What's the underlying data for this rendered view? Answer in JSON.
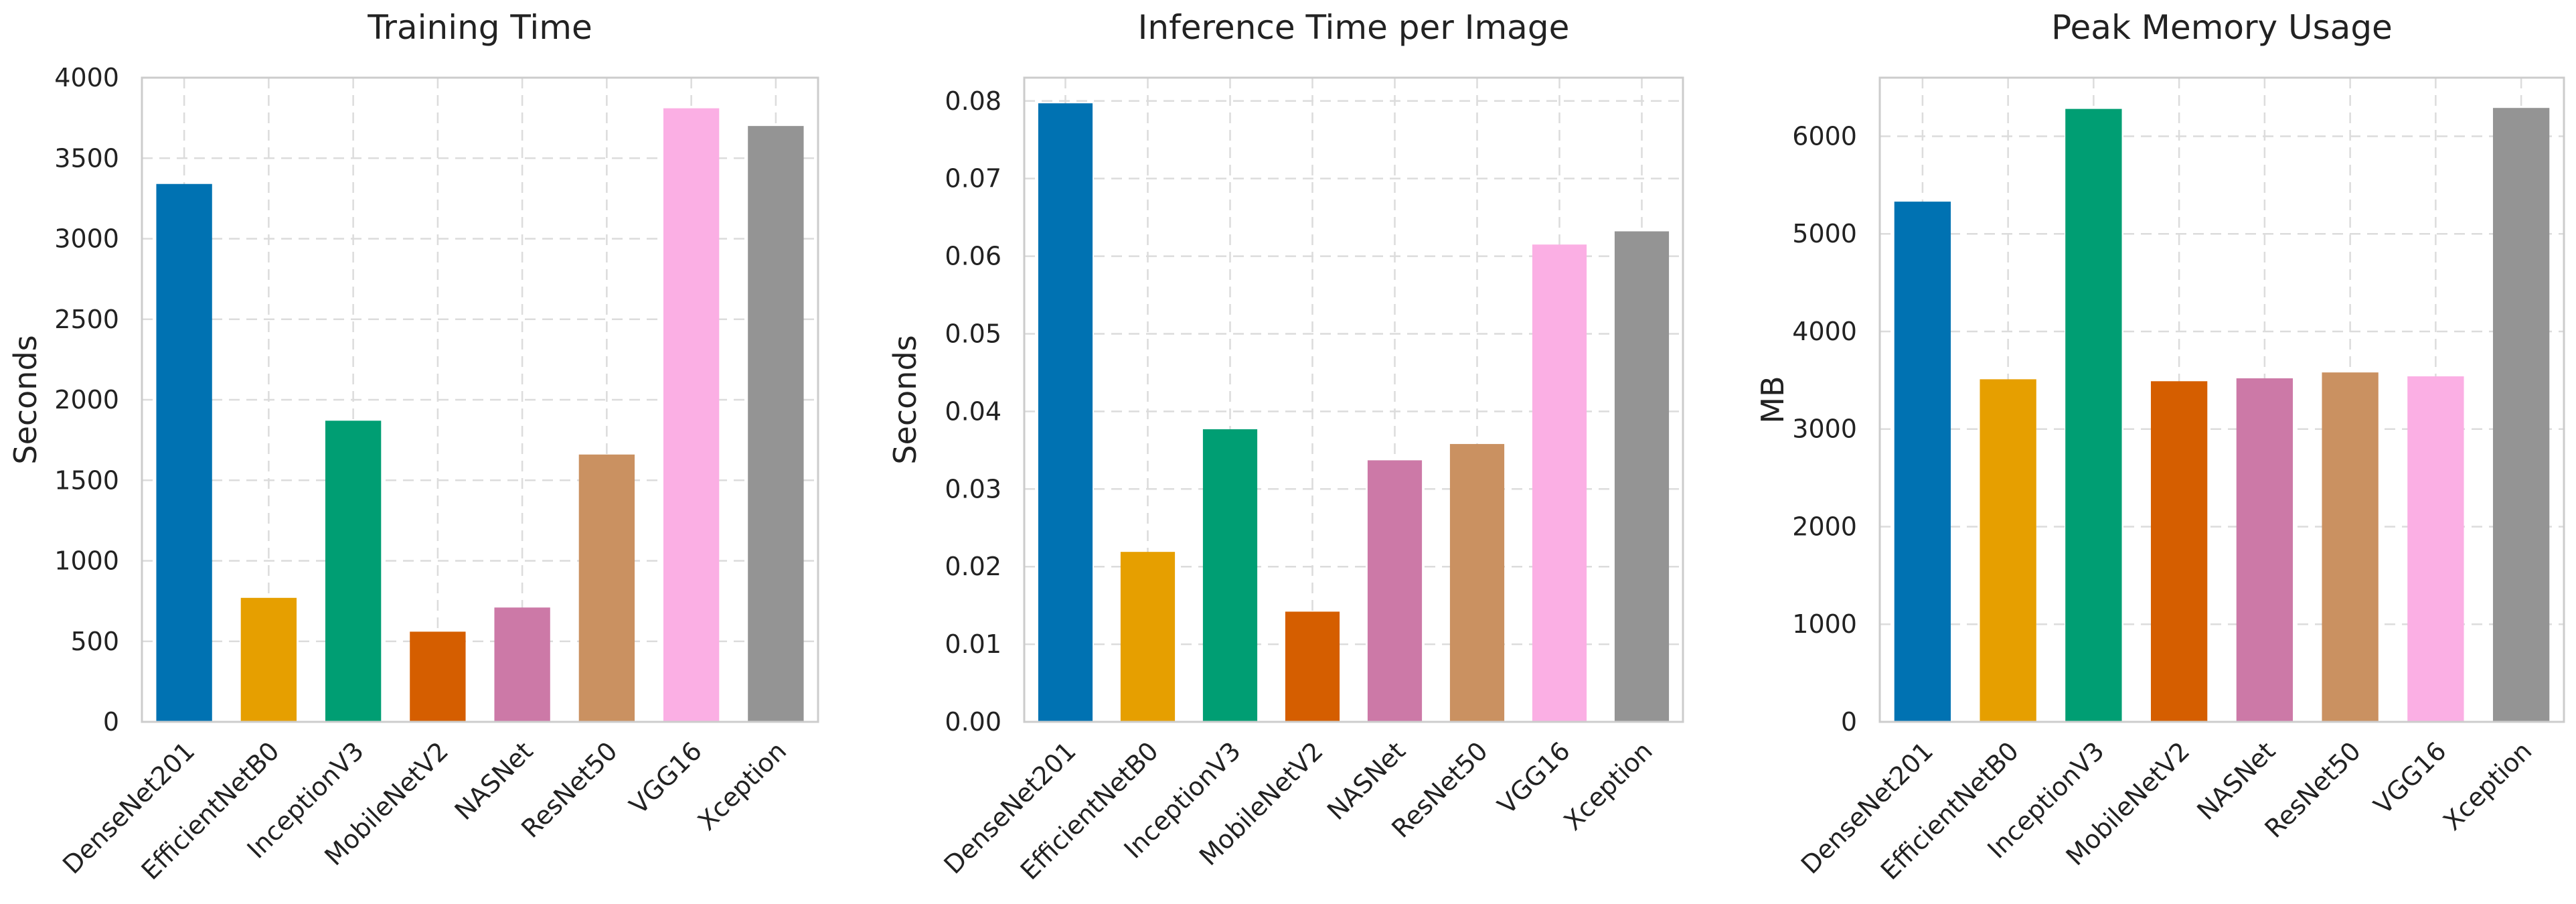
{
  "chart_data": [
    {
      "type": "bar",
      "title": "Training Time",
      "xlabel": "",
      "ylabel": "Seconds",
      "categories": [
        "DenseNet201",
        "EfficientNetB0",
        "InceptionV3",
        "MobileNetV2",
        "NASNet",
        "ResNet50",
        "VGG16",
        "Xception"
      ],
      "values": [
        3340,
        770,
        1870,
        560,
        710,
        1660,
        3810,
        3700
      ],
      "colors": [
        "#0072B2",
        "#E69F00",
        "#009E73",
        "#D55E00",
        "#CC79A7",
        "#CA9161",
        "#FBAFE4",
        "#949494"
      ],
      "ylim": [
        0,
        4000
      ],
      "yticks": [
        0,
        500,
        1000,
        1500,
        2000,
        2500,
        3000,
        3500,
        4000
      ],
      "ytick_labels": [
        "0",
        "500",
        "1000",
        "1500",
        "2000",
        "2500",
        "3000",
        "3500",
        "4000"
      ],
      "grid": true
    },
    {
      "type": "bar",
      "title": "Inference Time per Image",
      "xlabel": "",
      "ylabel": "Seconds",
      "categories": [
        "DenseNet201",
        "EfficientNetB0",
        "InceptionV3",
        "MobileNetV2",
        "NASNet",
        "ResNet50",
        "VGG16",
        "Xception"
      ],
      "values": [
        0.0797,
        0.0219,
        0.0377,
        0.0142,
        0.0337,
        0.0358,
        0.0615,
        0.0632
      ],
      "colors": [
        "#0072B2",
        "#E69F00",
        "#009E73",
        "#D55E00",
        "#CC79A7",
        "#CA9161",
        "#FBAFE4",
        "#949494"
      ],
      "ylim": [
        0,
        0.083
      ],
      "yticks": [
        0,
        0.01,
        0.02,
        0.03,
        0.04,
        0.05,
        0.06,
        0.07,
        0.08
      ],
      "ytick_labels": [
        "0.00",
        "0.01",
        "0.02",
        "0.03",
        "0.04",
        "0.05",
        "0.06",
        "0.07",
        "0.08"
      ],
      "grid": true
    },
    {
      "type": "bar",
      "title": "Peak Memory Usage",
      "xlabel": "",
      "ylabel": "MB",
      "categories": [
        "DenseNet201",
        "EfficientNetB0",
        "InceptionV3",
        "MobileNetV2",
        "NASNet",
        "ResNet50",
        "VGG16",
        "Xception"
      ],
      "values": [
        5330,
        3510,
        6280,
        3490,
        3520,
        3580,
        3540,
        6290
      ],
      "colors": [
        "#0072B2",
        "#E69F00",
        "#009E73",
        "#D55E00",
        "#CC79A7",
        "#CA9161",
        "#FBAFE4",
        "#949494"
      ],
      "ylim": [
        0,
        6600
      ],
      "yticks": [
        0,
        1000,
        2000,
        3000,
        4000,
        5000,
        6000
      ],
      "ytick_labels": [
        "0",
        "1000",
        "2000",
        "3000",
        "4000",
        "5000",
        "6000"
      ],
      "grid": true
    }
  ]
}
